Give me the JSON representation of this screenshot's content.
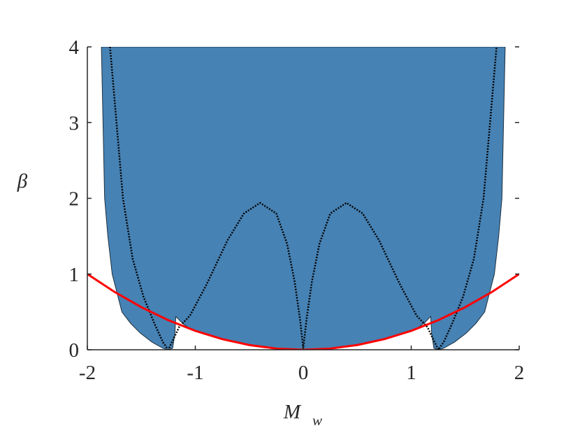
{
  "chart_data": {
    "type": "area",
    "ylabel": "β",
    "xlabel": "M",
    "xlabel_subscript": "w",
    "xlim": [
      -2,
      2
    ],
    "ylim": [
      0,
      4
    ],
    "xticks": [
      -2,
      -1,
      0,
      1,
      2
    ],
    "yticks": [
      0,
      1,
      2,
      3,
      4
    ],
    "series": [
      {
        "color": "#4682b4",
        "fill": true,
        "x": [
          -1.87,
          -1.84,
          -1.81,
          -1.77,
          -1.68,
          -1.6,
          -1.51,
          -1.4,
          -1.3,
          -1.25,
          -1.21,
          -1.19,
          -1.18,
          -1.12,
          -1.05,
          -0.75,
          -0.5,
          -0.25,
          0,
          0.25,
          0.5,
          0.75,
          1.05,
          1.12,
          1.18,
          1.19,
          1.21,
          1.25,
          1.3,
          1.4,
          1.51,
          1.6,
          1.68,
          1.77,
          1.81,
          1.84,
          1.87
        ],
        "values": [
          4,
          2,
          1.5,
          1,
          0.5,
          0.35,
          0.22,
          0.1,
          0.02,
          0,
          0.02,
          0.2,
          0.44,
          0.35,
          0.28,
          0.14,
          0.0625,
          0.0156,
          0,
          0.0156,
          0.0625,
          0.14,
          0.28,
          0.35,
          0.44,
          0.2,
          0.02,
          0,
          0.02,
          0.1,
          0.22,
          0.35,
          0.5,
          1,
          1.5,
          2,
          4
        ]
      },
      {
        "color": "#000000",
        "dotted": true,
        "x": [
          -1.79,
          -1.73,
          -1.67,
          -1.58,
          -1.48,
          -1.38,
          -1.3,
          -1.25,
          -1.15,
          -1.05,
          -0.9,
          -0.7,
          -0.55,
          -0.4,
          -0.25,
          -0.15,
          -0.08,
          -0.03,
          0,
          0.03,
          0.08,
          0.15,
          0.25,
          0.4,
          0.55,
          0.7,
          0.9,
          1.05,
          1.15,
          1.25,
          1.3,
          1.38,
          1.48,
          1.58,
          1.67,
          1.73,
          1.79
        ],
        "values": [
          4,
          3,
          2,
          1.2,
          0.7,
          0.35,
          0.1,
          0,
          0.3,
          0.45,
          0.85,
          1.45,
          1.8,
          1.94,
          1.8,
          1.4,
          0.9,
          0.4,
          0.02,
          0.4,
          0.9,
          1.4,
          1.8,
          1.94,
          1.8,
          1.45,
          0.85,
          0.45,
          0.3,
          0,
          0.1,
          0.35,
          0.7,
          1.2,
          2,
          3,
          4
        ]
      },
      {
        "color": "#ff0000",
        "x": [
          -2,
          -1.75,
          -1.5,
          -1.25,
          -1,
          -0.75,
          -0.5,
          -0.25,
          0,
          0.25,
          0.5,
          0.75,
          1,
          1.25,
          1.5,
          1.75,
          2
        ],
        "values": [
          1,
          0.7656,
          0.5625,
          0.3906,
          0.25,
          0.1406,
          0.0625,
          0.0156,
          0,
          0.0156,
          0.0625,
          0.1406,
          0.25,
          0.3906,
          0.5625,
          0.7656,
          1
        ]
      }
    ]
  }
}
